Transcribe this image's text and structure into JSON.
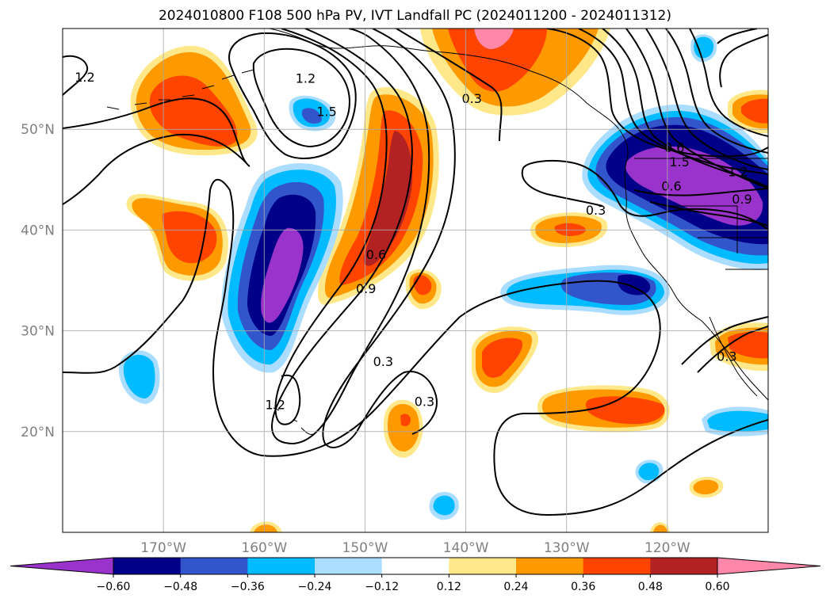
{
  "title": "2024010800 F108 500 hPa PV, IVT Landfall PC (2024011200 - 2024011312)",
  "map": {
    "lon_range": [
      -180,
      -110
    ],
    "lat_range": [
      10,
      60
    ],
    "lon_ticks": [
      {
        "lon": -170,
        "label": "170°W"
      },
      {
        "lon": -160,
        "label": "160°W"
      },
      {
        "lon": -150,
        "label": "150°W"
      },
      {
        "lon": -140,
        "label": "140°W"
      },
      {
        "lon": -130,
        "label": "130°W"
      },
      {
        "lon": -120,
        "label": "120°W"
      }
    ],
    "lat_ticks": [
      {
        "lat": 20,
        "label": "20°N"
      },
      {
        "lat": 30,
        "label": "30°N"
      },
      {
        "lat": 40,
        "label": "40°N"
      },
      {
        "lat": 50,
        "label": "50°N"
      }
    ],
    "grid": true
  },
  "colorbar": {
    "levels": [
      -0.6,
      -0.48,
      -0.36,
      -0.24,
      -0.12,
      0.12,
      0.24,
      0.36,
      0.48,
      0.6
    ],
    "labels": [
      "−0.60",
      "−0.48",
      "−0.36",
      "−0.24",
      "−0.12",
      "0.12",
      "0.24",
      "0.36",
      "0.48",
      "0.60"
    ],
    "colors": [
      "#9933cc",
      "#000088",
      "#3355cc",
      "#00bbff",
      "#aaddff",
      "#ffffff",
      "#ffe88a",
      "#ff9900",
      "#ff4400",
      "#b22222",
      "#ff88aa"
    ],
    "extend": "both"
  },
  "contours": {
    "labels": [
      {
        "text": "1.2",
        "lon": -177.8,
        "lat": 55.2
      },
      {
        "text": "1.2",
        "lon": -155.9,
        "lat": 55.1
      },
      {
        "text": "1.5",
        "lon": -153.8,
        "lat": 51.8
      },
      {
        "text": "0.3",
        "lon": -139.4,
        "lat": 53.1
      },
      {
        "text": "0.9",
        "lon": -149.9,
        "lat": 34.2
      },
      {
        "text": "0.6",
        "lon": -148.9,
        "lat": 37.6
      },
      {
        "text": "1.2",
        "lon": -158.9,
        "lat": 22.7
      },
      {
        "text": "0.3",
        "lon": -148.2,
        "lat": 27.0
      },
      {
        "text": "0.3",
        "lon": -144.1,
        "lat": 23.0
      },
      {
        "text": "0.3",
        "lon": -127.1,
        "lat": 42.0
      },
      {
        "text": "0.6",
        "lon": -119.3,
        "lat": 48.2
      },
      {
        "text": "1.5",
        "lon": -118.8,
        "lat": 46.8
      },
      {
        "text": "0.6",
        "lon": -119.6,
        "lat": 44.4
      },
      {
        "text": "1.2",
        "lon": -113.0,
        "lat": 45.8
      },
      {
        "text": "0.9",
        "lon": -112.6,
        "lat": 43.1
      },
      {
        "text": "0.3",
        "lon": -114.1,
        "lat": 27.5
      }
    ]
  }
}
